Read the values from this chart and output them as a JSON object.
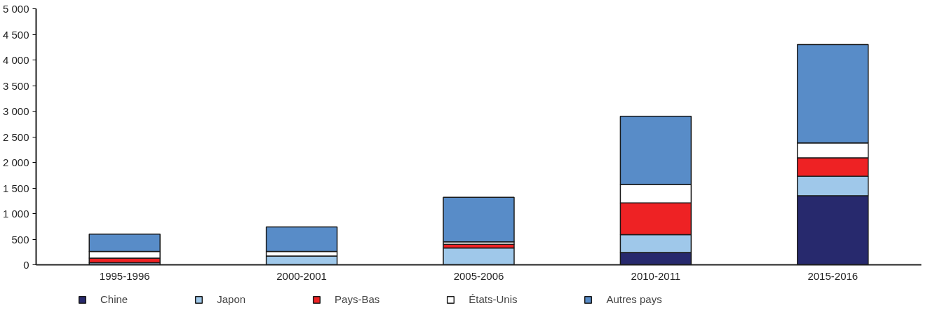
{
  "chart_data": {
    "type": "bar",
    "stacked": true,
    "categories": [
      "1995-1996",
      "2000-2001",
      "2005-2006",
      "2010-2011",
      "2015-2016"
    ],
    "series": [
      {
        "name": "Chine",
        "color": "#27296d",
        "values": [
          0,
          0,
          null,
          240,
          1350
        ]
      },
      {
        "name": "Japon",
        "color": "#9fc8ea",
        "values": [
          40,
          170,
          330,
          350,
          380
        ]
      },
      {
        "name": "Pays-Bas",
        "color": "#ee2224",
        "values": [
          90,
          null,
          70,
          620,
          360
        ]
      },
      {
        "name": "États-Unis",
        "color": "#ffffff",
        "values": [
          130,
          90,
          50,
          360,
          290
        ]
      },
      {
        "name": "Autres pays",
        "color": "#588cc8",
        "values": [
          340,
          480,
          870,
          1330,
          1920
        ]
      }
    ],
    "ylim": [
      0,
      5000
    ],
    "yticks": [
      0,
      500,
      {
        "value": 1000,
        "label": "1 000"
      },
      {
        "value": 1500,
        "label": "1 500"
      },
      {
        "value": 2000,
        "label": "2 000"
      },
      {
        "value": 2500,
        "label": "2 500"
      },
      {
        "value": 3000,
        "label": "3 000"
      },
      {
        "value": 3500,
        "label": "3 500"
      },
      {
        "value": 4000,
        "label": "4 000"
      },
      {
        "value": 4500,
        "label": "4 500"
      },
      {
        "value": 5000,
        "label": "5 000"
      }
    ],
    "grid": false,
    "legend": "bottom"
  }
}
